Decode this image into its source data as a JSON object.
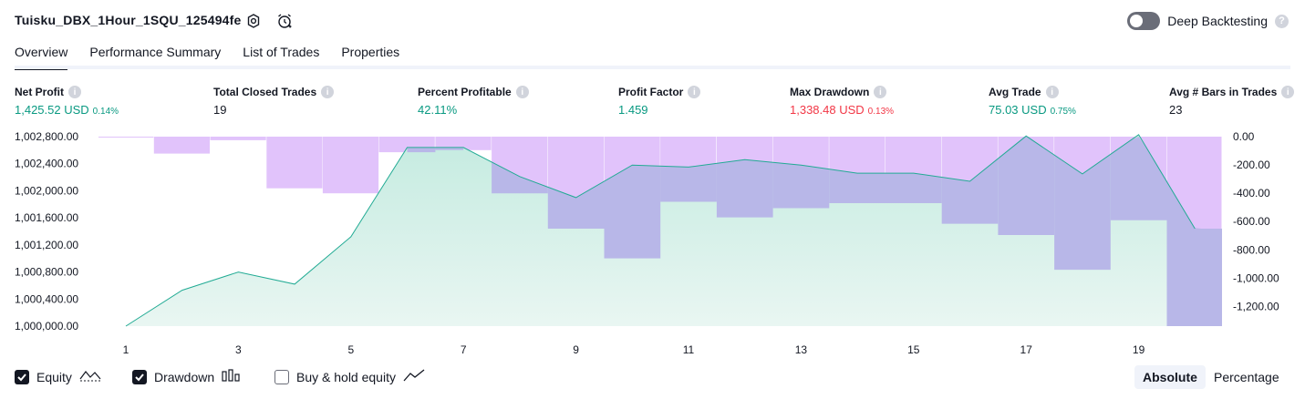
{
  "header": {
    "title": "Tuisku_DBX_1Hour_1SQU_125494fe",
    "deep_backtesting_label": "Deep Backtesting",
    "deep_backtesting_enabled": false,
    "help_glyph": "?"
  },
  "tabs": [
    {
      "label": "Overview",
      "active": true
    },
    {
      "label": "Performance Summary",
      "active": false
    },
    {
      "label": "List of Trades",
      "active": false
    },
    {
      "label": "Properties",
      "active": false
    }
  ],
  "metrics": [
    {
      "label": "Net Profit",
      "value": "1,425.52 USD",
      "pct": "0.14%",
      "tone": "green"
    },
    {
      "label": "Total Closed Trades",
      "value": "19",
      "pct": "",
      "tone": "neutral"
    },
    {
      "label": "Percent Profitable",
      "value": "42.11%",
      "pct": "",
      "tone": "green"
    },
    {
      "label": "Profit Factor",
      "value": "1.459",
      "pct": "",
      "tone": "green"
    },
    {
      "label": "Max Drawdown",
      "value": "1,338.48 USD",
      "pct": "0.13%",
      "tone": "red"
    },
    {
      "label": "Avg Trade",
      "value": "75.03 USD",
      "pct": "0.75%",
      "tone": "green"
    },
    {
      "label": "Avg # Bars in Trades",
      "value": "23",
      "pct": "",
      "tone": "neutral"
    }
  ],
  "info_glyph": "i",
  "legend": {
    "equity": {
      "label": "Equity",
      "checked": true
    },
    "drawdown": {
      "label": "Drawdown",
      "checked": true
    },
    "buy_hold": {
      "label": "Buy & hold equity",
      "checked": false
    }
  },
  "view_toggle": {
    "absolute": "Absolute",
    "percentage": "Percentage",
    "selected": "absolute"
  },
  "colors": {
    "equity_line": "#22ab94",
    "equity_fill": "#c4ebe0",
    "drawdown_fill": "#e1c3fb",
    "overlap_fill": "#b8b7e8",
    "positive": "#089981",
    "negative": "#f23645"
  },
  "chart_data": {
    "type": "line",
    "x": [
      1,
      2,
      3,
      4,
      5,
      6,
      7,
      8,
      9,
      10,
      11,
      12,
      13,
      14,
      15,
      16,
      17,
      18,
      19,
      20
    ],
    "x_tick_labels": [
      "1",
      "3",
      "5",
      "7",
      "9",
      "11",
      "13",
      "15",
      "17",
      "19"
    ],
    "series": [
      {
        "name": "Equity",
        "axis": "left",
        "values": [
          1000000,
          1000530,
          1000800,
          1000620,
          1001320,
          1002640,
          1002640,
          1002210,
          1001900,
          1002380,
          1002350,
          1002460,
          1002380,
          1002260,
          1002260,
          1002140,
          1002810,
          1002250,
          1002830,
          1001440
        ]
      },
      {
        "name": "Drawdown",
        "axis": "right",
        "type": "bar",
        "values": [
          -5,
          -120,
          -25,
          -365,
          -400,
          -110,
          -95,
          -400,
          -650,
          -860,
          -460,
          -570,
          -505,
          -470,
          -470,
          -615,
          -695,
          -940,
          -590,
          -1338.48
        ]
      }
    ],
    "left_axis": {
      "ticks": [
        "1,000,000.00",
        "1,000,400.00",
        "1,000,800.00",
        "1,001,200.00",
        "1,001,600.00",
        "1,002,000.00",
        "1,002,400.00",
        "1,002,800.00"
      ],
      "range": [
        1000000,
        1002800
      ]
    },
    "right_axis": {
      "ticks": [
        "0.00",
        "-200.00",
        "-400.00",
        "-600.00",
        "-800.00",
        "-1,000.00",
        "-1,200.00"
      ],
      "range": [
        -1338.48,
        0
      ]
    }
  }
}
